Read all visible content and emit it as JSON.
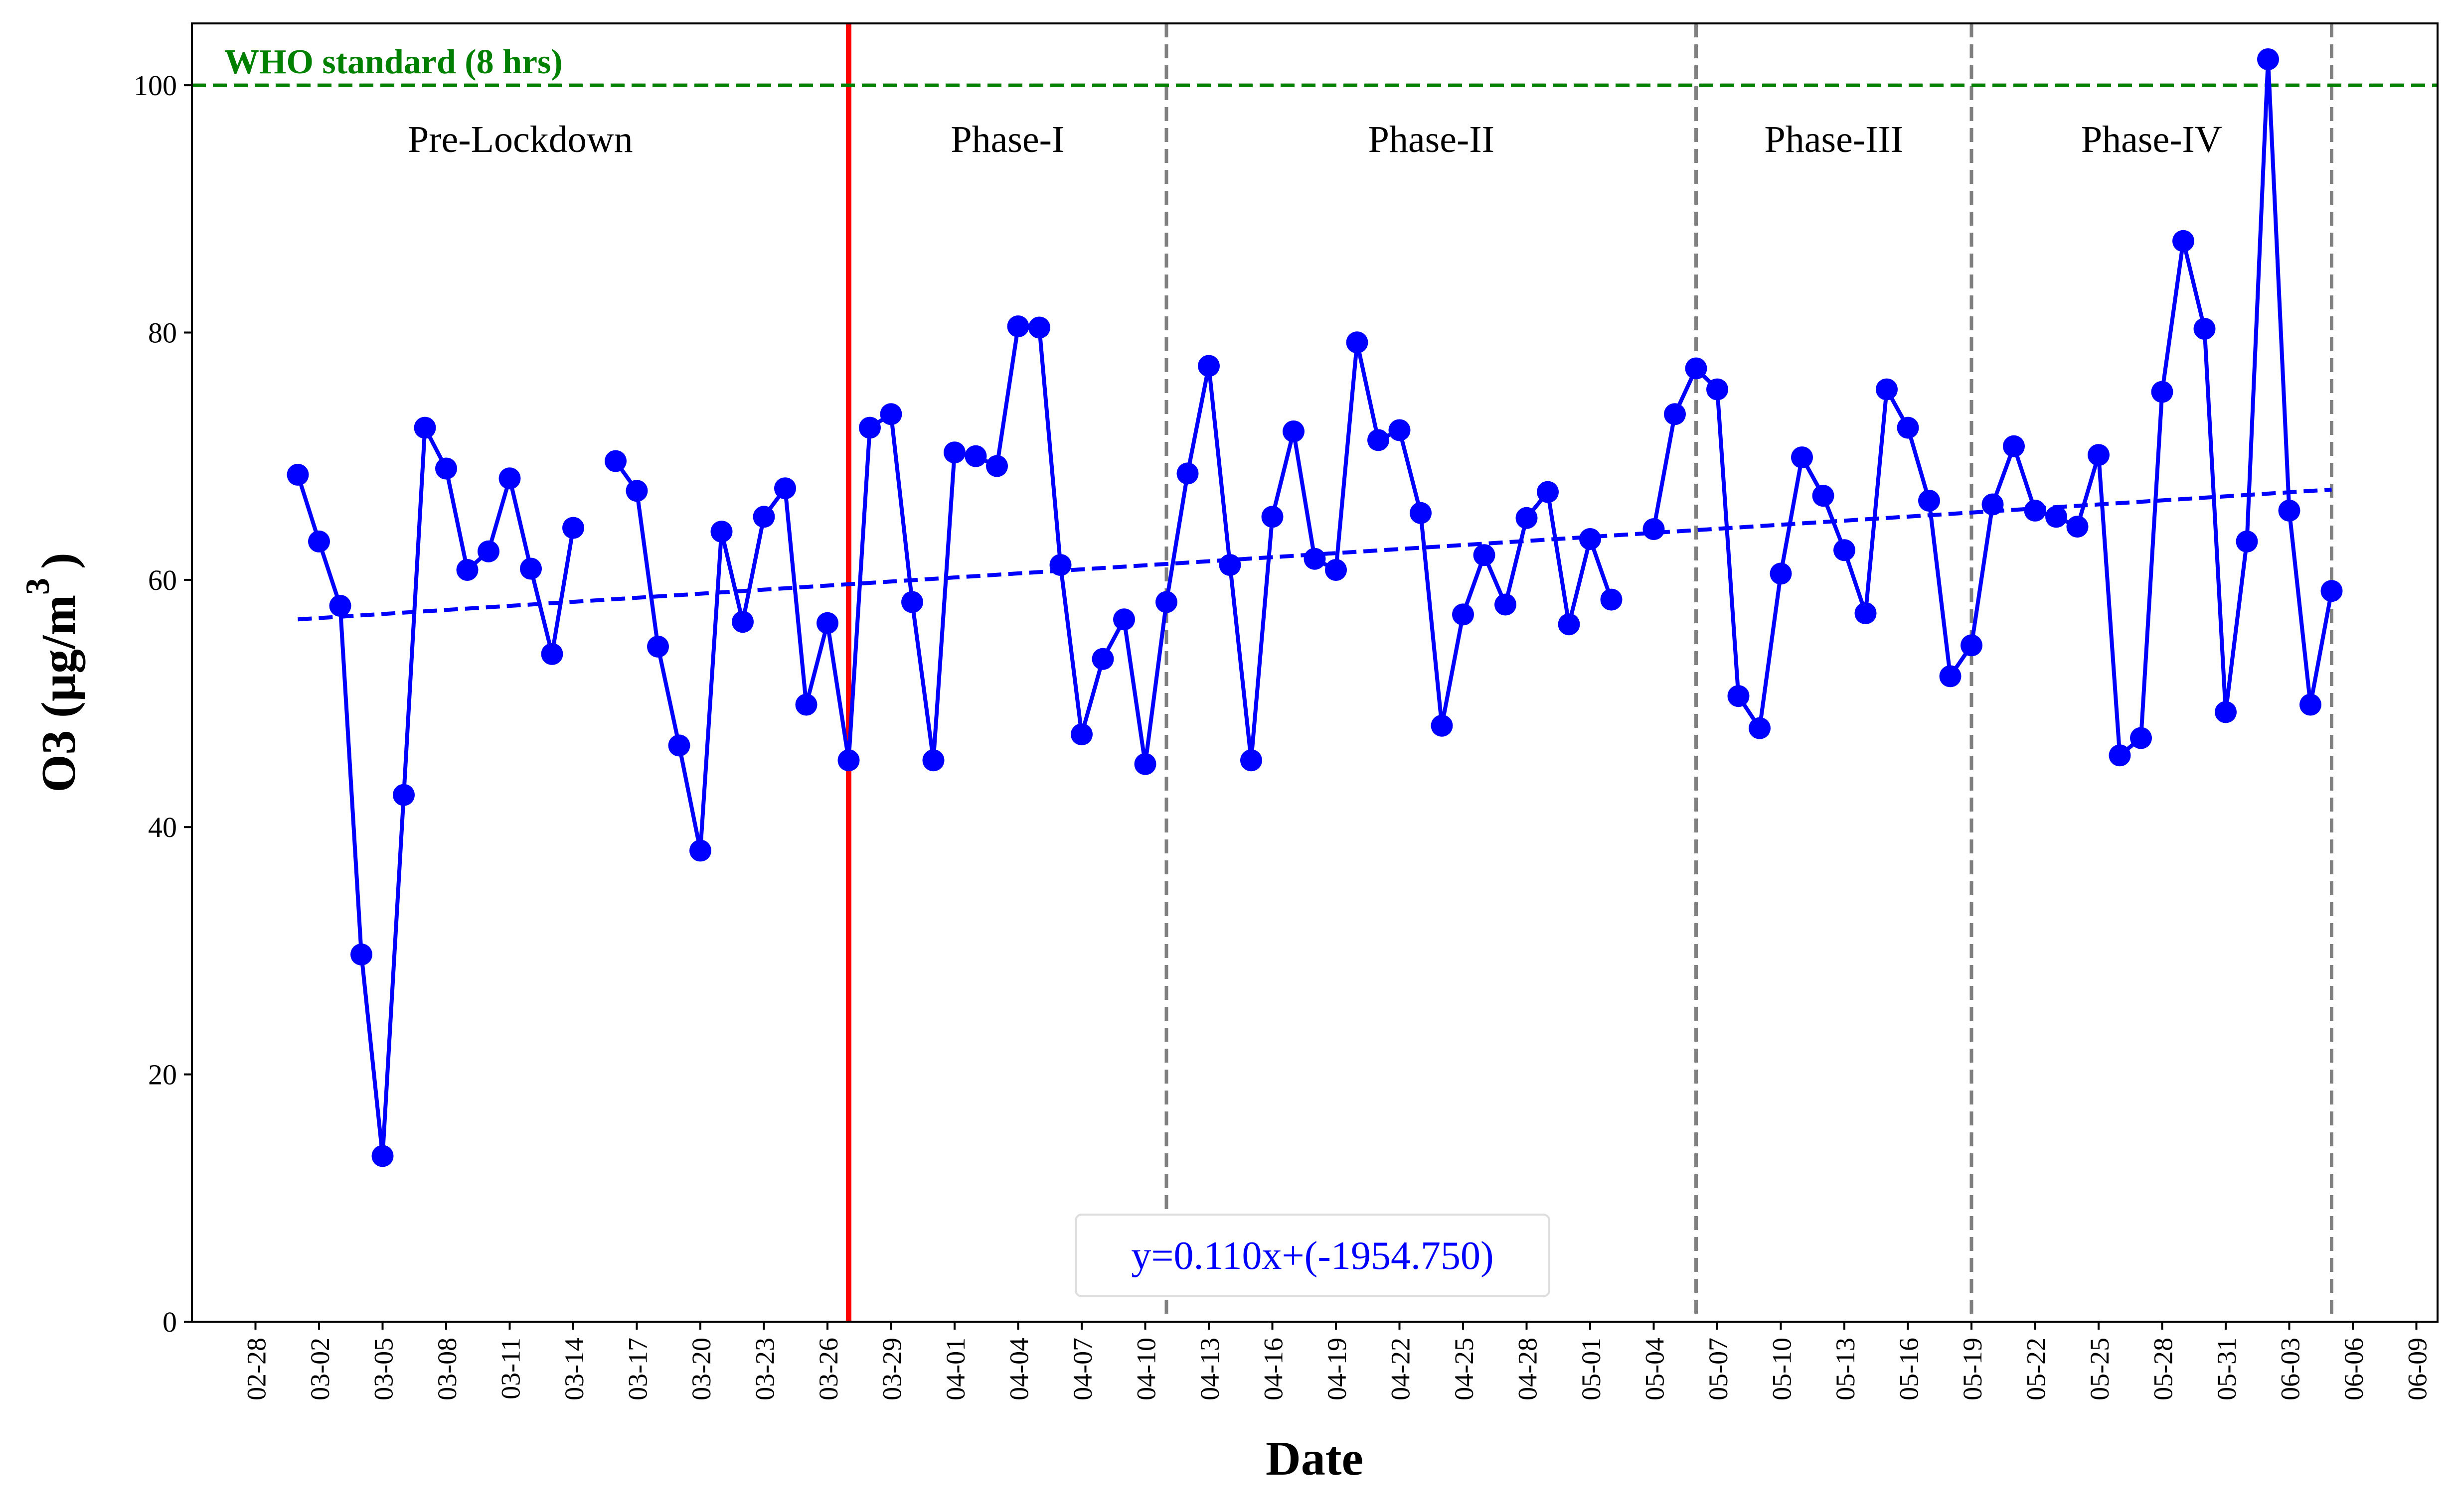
{
  "chart_data": {
    "type": "line",
    "xlabel": "Date",
    "ylabel": "O3 (µg/m",
    "ylabel_sup": "3",
    "ylabel_close": ")",
    "ylim": [
      0,
      105
    ],
    "yticks": [
      0,
      20,
      40,
      60,
      80,
      100
    ],
    "xticks": [
      "02-28",
      "03-02",
      "03-05",
      "03-08",
      "03-11",
      "03-14",
      "03-17",
      "03-20",
      "03-23",
      "03-26",
      "03-29",
      "04-01",
      "04-04",
      "04-07",
      "04-10",
      "04-13",
      "04-16",
      "04-19",
      "04-22",
      "04-25",
      "04-28",
      "05-01",
      "05-04",
      "05-07",
      "05-10",
      "05-13",
      "05-16",
      "05-19",
      "05-22",
      "05-25",
      "05-28",
      "05-31",
      "06-03",
      "06-06",
      "06-09"
    ],
    "x_domain": [
      "2020-02-25",
      "2020-06-10"
    ],
    "grid": false,
    "series": [
      {
        "color": "#0000ff",
        "marker": "circle",
        "segments": [
          [
            [
              "2020-03-01",
              68.5
            ],
            [
              "2020-03-02",
              63.1
            ],
            [
              "2020-03-03",
              57.9
            ],
            [
              "2020-03-04",
              29.7
            ],
            [
              "2020-03-05",
              13.4
            ],
            [
              "2020-03-06",
              42.6
            ],
            [
              "2020-03-07",
              72.3
            ],
            [
              "2020-03-08",
              69.0
            ],
            [
              "2020-03-09",
              60.8
            ],
            [
              "2020-03-10",
              62.3
            ],
            [
              "2020-03-11",
              68.2
            ],
            [
              "2020-03-12",
              60.9
            ],
            [
              "2020-03-13",
              54.0
            ],
            [
              "2020-03-14",
              64.2
            ]
          ],
          [
            [
              "2020-03-16",
              69.6
            ],
            [
              "2020-03-17",
              67.2
            ],
            [
              "2020-03-18",
              54.6
            ],
            [
              "2020-03-19",
              46.6
            ],
            [
              "2020-03-20",
              38.1
            ],
            [
              "2020-03-21",
              63.9
            ],
            [
              "2020-03-22",
              56.6
            ],
            [
              "2020-03-23",
              65.1
            ],
            [
              "2020-03-24",
              67.4
            ],
            [
              "2020-03-25",
              49.9
            ],
            [
              "2020-03-26",
              56.5
            ],
            [
              "2020-03-27",
              45.4
            ],
            [
              "2020-03-28",
              72.3
            ],
            [
              "2020-03-29",
              73.4
            ],
            [
              "2020-03-30",
              58.2
            ],
            [
              "2020-03-31",
              45.4
            ],
            [
              "2020-04-01",
              70.3
            ],
            [
              "2020-04-02",
              70.0
            ],
            [
              "2020-04-03",
              69.2
            ],
            [
              "2020-04-04",
              80.5
            ],
            [
              "2020-04-05",
              80.4
            ],
            [
              "2020-04-06",
              61.2
            ],
            [
              "2020-04-07",
              47.5
            ],
            [
              "2020-04-08",
              53.6
            ],
            [
              "2020-04-09",
              56.8
            ],
            [
              "2020-04-10",
              45.1
            ],
            [
              "2020-04-11",
              58.2
            ],
            [
              "2020-04-12",
              68.6
            ],
            [
              "2020-04-13",
              77.3
            ],
            [
              "2020-04-14",
              61.2
            ],
            [
              "2020-04-15",
              45.4
            ],
            [
              "2020-04-16",
              65.1
            ],
            [
              "2020-04-17",
              72.0
            ],
            [
              "2020-04-18",
              61.7
            ],
            [
              "2020-04-19",
              60.8
            ],
            [
              "2020-04-20",
              79.2
            ],
            [
              "2020-04-21",
              71.3
            ],
            [
              "2020-04-22",
              72.1
            ],
            [
              "2020-04-23",
              65.4
            ],
            [
              "2020-04-24",
              48.2
            ],
            [
              "2020-04-25",
              57.2
            ],
            [
              "2020-04-26",
              62.0
            ],
            [
              "2020-04-27",
              58.0
            ],
            [
              "2020-04-28",
              65.0
            ],
            [
              "2020-04-29",
              67.1
            ],
            [
              "2020-04-30",
              56.4
            ],
            [
              "2020-05-01",
              63.3
            ],
            [
              "2020-05-02",
              58.4
            ]
          ],
          [
            [
              "2020-05-04",
              64.1
            ],
            [
              "2020-05-05",
              73.4
            ],
            [
              "2020-05-06",
              77.1
            ],
            [
              "2020-05-07",
              75.4
            ],
            [
              "2020-05-08",
              50.6
            ],
            [
              "2020-05-09",
              48.0
            ],
            [
              "2020-05-10",
              60.5
            ],
            [
              "2020-05-11",
              69.9
            ],
            [
              "2020-05-12",
              66.8
            ],
            [
              "2020-05-13",
              62.4
            ],
            [
              "2020-05-14",
              57.3
            ],
            [
              "2020-05-15",
              75.4
            ],
            [
              "2020-05-16",
              72.3
            ],
            [
              "2020-05-17",
              66.4
            ],
            [
              "2020-05-18",
              52.2
            ],
            [
              "2020-05-19",
              54.7
            ],
            [
              "2020-05-20",
              66.1
            ],
            [
              "2020-05-21",
              70.8
            ],
            [
              "2020-05-22",
              65.6
            ],
            [
              "2020-05-23",
              65.1
            ],
            [
              "2020-05-24",
              64.3
            ],
            [
              "2020-05-25",
              70.1
            ],
            [
              "2020-05-26",
              45.8
            ],
            [
              "2020-05-27",
              47.2
            ],
            [
              "2020-05-28",
              75.2
            ],
            [
              "2020-05-29",
              87.4
            ],
            [
              "2020-05-30",
              80.3
            ],
            [
              "2020-05-31",
              49.3
            ],
            [
              "2020-06-01",
              63.1
            ],
            [
              "2020-06-02",
              102.1
            ],
            [
              "2020-06-03",
              65.6
            ],
            [
              "2020-06-04",
              49.9
            ],
            [
              "2020-06-05",
              59.1
            ]
          ]
        ]
      }
    ],
    "trendline": {
      "color": "#0000ff",
      "style": "dashed",
      "x": [
        "2020-03-01",
        "2020-06-05"
      ],
      "y": [
        56.8,
        67.3
      ],
      "equation": "y=0.110x+(-1954.750)"
    },
    "reference_line": {
      "value": 100,
      "color": "#008000",
      "style": "dashed",
      "label": "WHO standard (8 hrs)"
    },
    "lockdown_line": {
      "date": "2020-03-27",
      "color": "#ff0000"
    },
    "phase_boundaries": [
      "2020-04-11",
      "2020-05-06",
      "2020-05-19",
      "2020-06-05"
    ],
    "phases": [
      {
        "label": "Pre-Lockdown",
        "from": "2020-02-25",
        "to": "2020-03-27"
      },
      {
        "label": "Phase-I",
        "from": "2020-03-27",
        "to": "2020-04-11"
      },
      {
        "label": "Phase-II",
        "from": "2020-04-11",
        "to": "2020-05-06"
      },
      {
        "label": "Phase-III",
        "from": "2020-05-06",
        "to": "2020-05-19"
      },
      {
        "label": "Phase-IV",
        "from": "2020-05-19",
        "to": "2020-06-05"
      }
    ]
  }
}
